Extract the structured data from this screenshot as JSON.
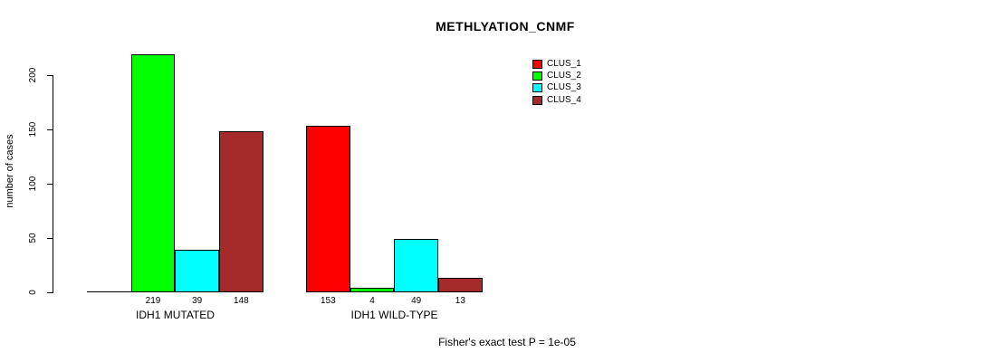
{
  "chart": {
    "title": "METHLYATION_CNMF",
    "footnote": "Fisher's exact test P = 1e-05"
  },
  "chart_data": {
    "type": "bar",
    "title": "METHLYATION_CNMF",
    "xlabel": "",
    "ylabel": "number of cases",
    "categories": [
      "IDH1 MUTATED",
      "IDH1 WILD-TYPE"
    ],
    "series": [
      {
        "name": "CLUS_1",
        "color": "#ff0000",
        "values": [
          0,
          153
        ]
      },
      {
        "name": "CLUS_2",
        "color": "#00ff00",
        "values": [
          219,
          4
        ]
      },
      {
        "name": "CLUS_3",
        "color": "#00ffff",
        "values": [
          39,
          49
        ]
      },
      {
        "name": "CLUS_4",
        "color": "#a52a2a",
        "values": [
          148,
          13
        ]
      }
    ],
    "bar_labels": [
      [
        "",
        "219",
        "39",
        "148"
      ],
      [
        "153",
        "4",
        "49",
        "13"
      ]
    ],
    "yticks": [
      0,
      50,
      100,
      150,
      200
    ],
    "ylim": [
      0,
      220
    ],
    "grid": false,
    "legend_position": "top-right",
    "legend": [
      "CLUS_1",
      "CLUS_2",
      "CLUS_3",
      "CLUS_4"
    ],
    "annotation": "Fisher's exact test P = 1e-05"
  },
  "colors": {
    "background": "#ffffff",
    "axis": "#000000",
    "text": "#000000",
    "bar_border": "#000000",
    "clus_1": "#ff0000",
    "clus_2": "#00ff00",
    "clus_3": "#00ffff",
    "clus_4": "#a52a2a"
  }
}
